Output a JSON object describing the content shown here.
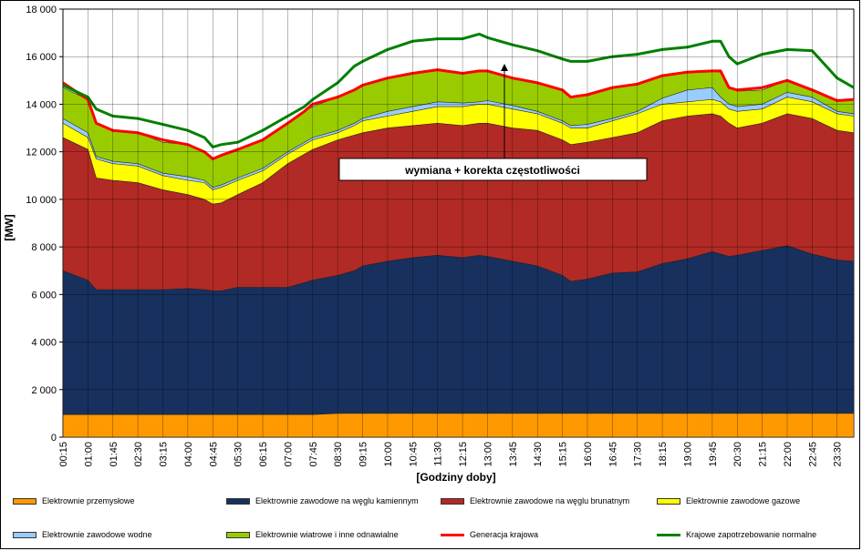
{
  "chart_data": {
    "type": "area",
    "ylabel": "[MW]",
    "xlabel": "[Godziny doby]",
    "ylim": [
      0,
      18000
    ],
    "yticks": [
      "0",
      "2 000",
      "4 000",
      "6 000",
      "8 000",
      "10 000",
      "12 000",
      "14 000",
      "16 000",
      "18 000"
    ],
    "xtick_labels": [
      "00:15",
      "01:00",
      "01:45",
      "02:30",
      "03:15",
      "04:00",
      "04:45",
      "05:30",
      "06:15",
      "07:00",
      "07:45",
      "08:30",
      "09:15",
      "10:00",
      "10:45",
      "11:30",
      "12:15",
      "13:00",
      "13:45",
      "14:30",
      "15:15",
      "16:00",
      "16:45",
      "17:30",
      "18:15",
      "19:00",
      "19:45",
      "20:30",
      "21:15",
      "22:00",
      "22:45",
      "23:30"
    ],
    "grid": true,
    "annotation": "wymiana + korekta częstotliwości",
    "x_keypoints": [
      "00:15",
      "01:00",
      "01:15",
      "01:45",
      "02:30",
      "03:15",
      "04:00",
      "04:30",
      "04:45",
      "05:00",
      "05:30",
      "06:15",
      "07:00",
      "07:30",
      "07:45",
      "08:30",
      "09:00",
      "09:15",
      "10:00",
      "10:45",
      "11:30",
      "12:15",
      "12:45",
      "13:00",
      "13:45",
      "14:30",
      "15:15",
      "15:30",
      "16:00",
      "16:45",
      "17:30",
      "18:15",
      "19:00",
      "19:45",
      "20:00",
      "20:15",
      "20:30",
      "21:15",
      "22:00",
      "22:45",
      "23:30",
      "24:00"
    ],
    "series": [
      {
        "name": "Elektrownie przemysłowe",
        "kind": "area",
        "color": "#FF9900",
        "values": [
          950,
          950,
          950,
          950,
          950,
          950,
          950,
          950,
          950,
          950,
          950,
          950,
          950,
          950,
          950,
          1000,
          1000,
          1000,
          1000,
          1000,
          1000,
          1000,
          1000,
          1000,
          1000,
          1000,
          1000,
          1000,
          1000,
          1000,
          1000,
          1000,
          1000,
          1000,
          1000,
          1000,
          1000,
          1000,
          1000,
          1000,
          1000,
          1000
        ]
      },
      {
        "name": "Elektrownie zawodowe na węglu kamiennym",
        "kind": "area",
        "color": "#17305E",
        "values": [
          7000,
          6600,
          6200,
          6200,
          6200,
          6200,
          6250,
          6200,
          6150,
          6150,
          6300,
          6300,
          6300,
          6500,
          6600,
          6800,
          7000,
          7200,
          7400,
          7550,
          7650,
          7550,
          7650,
          7600,
          7400,
          7200,
          6800,
          6550,
          6650,
          6900,
          6950,
          7300,
          7500,
          7800,
          7700,
          7600,
          7650,
          7850,
          8050,
          7700,
          7450,
          7400
        ]
      },
      {
        "name": "Elektrownie zawodowe na węglu brunatnym",
        "kind": "area",
        "color": "#B22A25",
        "values": [
          12600,
          12100,
          10900,
          10800,
          10700,
          10400,
          10200,
          10000,
          9800,
          9850,
          10200,
          10700,
          11500,
          11900,
          12100,
          12500,
          12700,
          12800,
          13000,
          13100,
          13200,
          13100,
          13200,
          13200,
          13000,
          12900,
          12500,
          12300,
          12400,
          12600,
          12800,
          13300,
          13500,
          13600,
          13500,
          13200,
          13000,
          13200,
          13600,
          13400,
          12900,
          12800
        ]
      },
      {
        "name": "Elektrownie zawodowe gazowe",
        "kind": "area",
        "color": "#FFFF00",
        "values": [
          13200,
          12600,
          11700,
          11500,
          11400,
          11000,
          10800,
          10700,
          10400,
          10500,
          10800,
          11200,
          11900,
          12300,
          12500,
          12800,
          13100,
          13300,
          13500,
          13700,
          13900,
          13900,
          14000,
          14000,
          13800,
          13600,
          13200,
          13000,
          13000,
          13300,
          13600,
          14000,
          14100,
          14200,
          14100,
          13800,
          13700,
          13800,
          14300,
          14100,
          13600,
          13500
        ]
      },
      {
        "name": "Elektrownie zawodowe wodne",
        "kind": "area",
        "color": "#99CCFF",
        "values": [
          13400,
          12800,
          11800,
          11600,
          11500,
          11100,
          10950,
          10800,
          10500,
          10600,
          10900,
          11300,
          12000,
          12400,
          12600,
          12900,
          13200,
          13400,
          13700,
          13900,
          14100,
          14050,
          14100,
          14150,
          13950,
          13700,
          13300,
          13100,
          13150,
          13400,
          13700,
          14250,
          14600,
          14700,
          14300,
          14000,
          13900,
          14000,
          14500,
          14300,
          13700,
          13600
        ]
      },
      {
        "name": "Elektrownie wiatrowe i inne odnawialne",
        "kind": "area",
        "color": "#99CC00",
        "values": [
          14700,
          14200,
          13200,
          12900,
          12800,
          12400,
          12300,
          12000,
          11700,
          11800,
          12100,
          12500,
          13200,
          13700,
          13900,
          14300,
          14600,
          14800,
          15100,
          15300,
          15450,
          15300,
          15400,
          15400,
          15100,
          14900,
          14600,
          14300,
          14400,
          14700,
          14800,
          15200,
          15350,
          15400,
          15350,
          14700,
          14550,
          14600,
          15000,
          14600,
          14200,
          14200
        ]
      },
      {
        "name": "Generacja krajowa",
        "kind": "line",
        "color": "#FF0000",
        "values": [
          14900,
          14200,
          13200,
          12900,
          12800,
          12500,
          12300,
          12000,
          11700,
          11850,
          12100,
          12500,
          13200,
          13700,
          14000,
          14300,
          14600,
          14800,
          15100,
          15300,
          15450,
          15300,
          15400,
          15400,
          15100,
          14900,
          14600,
          14300,
          14400,
          14700,
          14850,
          15200,
          15350,
          15400,
          15400,
          14700,
          14600,
          14700,
          15000,
          14600,
          14150,
          14200
        ]
      },
      {
        "name": "Krajowe zapotrzebowanie normalne",
        "kind": "line",
        "color": "#008000",
        "values": [
          14800,
          14300,
          13800,
          13500,
          13400,
          13150,
          12900,
          12600,
          12200,
          12300,
          12400,
          12900,
          13500,
          13900,
          14200,
          14900,
          15600,
          15800,
          16300,
          16650,
          16750,
          16750,
          16950,
          16800,
          16500,
          16250,
          15900,
          15800,
          15800,
          16000,
          16100,
          16300,
          16400,
          16650,
          16650,
          16000,
          15700,
          16100,
          16300,
          16250,
          15100,
          14700
        ]
      }
    ]
  }
}
